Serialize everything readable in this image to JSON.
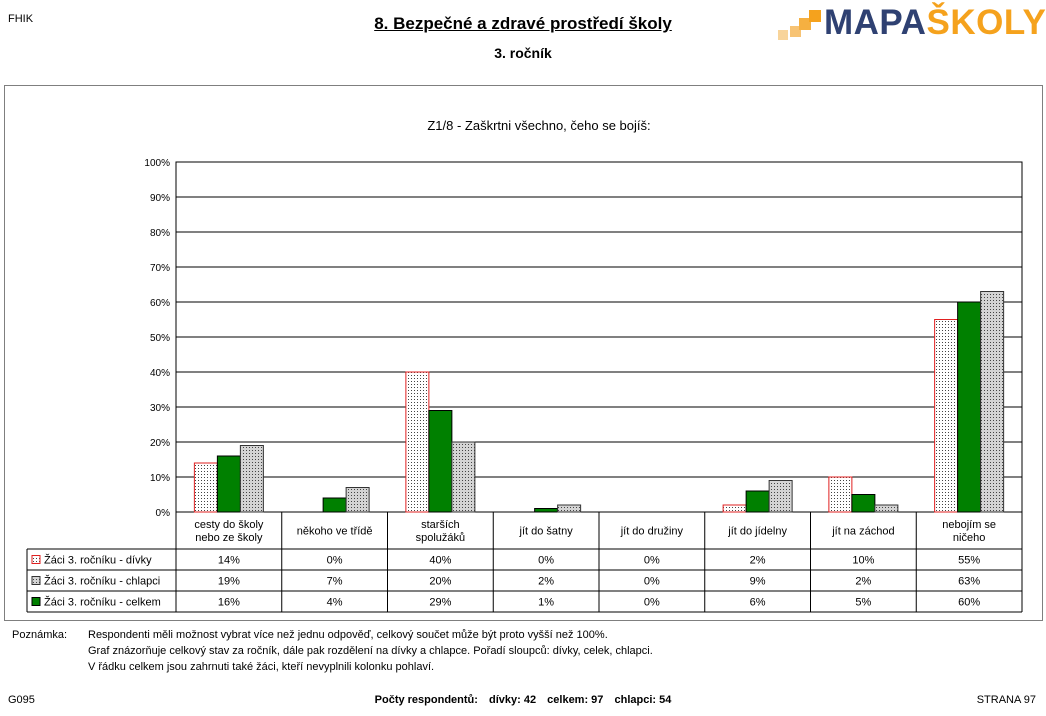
{
  "header": {
    "corner_label": "FHIK",
    "title": "8. Bezpečné a zdravé prostředí školy",
    "subtitle": "3. ročník",
    "logo": {
      "part1": "MAPA",
      "part2": "ŠKOLY",
      "color_dark": "#2f4172",
      "color_accent": "#f5a21d"
    }
  },
  "chart_data": {
    "type": "bar",
    "title": "Z1/8 - Zaškrtni všechno, čeho se bojíš:",
    "categories": [
      [
        "cesty do školy",
        "nebo ze školy"
      ],
      [
        "někoho ve třídě"
      ],
      [
        "starších",
        "spolužáků"
      ],
      [
        "jít do šatny"
      ],
      [
        "jít do družiny"
      ],
      [
        "jít do jídelny"
      ],
      [
        "jít na záchod"
      ],
      [
        "nebojím se",
        "ničeho"
      ]
    ],
    "series": [
      {
        "name": "Žáci 3. ročníku - dívky",
        "values": [
          14,
          0,
          40,
          0,
          0,
          2,
          10,
          55
        ],
        "fill": "#ffffff",
        "stroke": "#e02020",
        "pattern": "dots"
      },
      {
        "name": "Žáci 3. ročníku - chlapci",
        "values": [
          19,
          7,
          20,
          2,
          0,
          9,
          2,
          63
        ],
        "fill": "#d4d4d4",
        "stroke": "#333333",
        "pattern": "dots"
      },
      {
        "name": "Žáci 3. ročníku - celkem",
        "values": [
          16,
          4,
          29,
          1,
          0,
          6,
          5,
          60
        ],
        "fill": "#008000",
        "stroke": "#000000",
        "pattern": "solid"
      }
    ],
    "bar_order": [
      0,
      2,
      1
    ],
    "table_rows": [
      {
        "series_index": 0,
        "cells": [
          "14%",
          "0%",
          "40%",
          "0%",
          "0%",
          "2%",
          "10%",
          "55%"
        ]
      },
      {
        "series_index": 1,
        "cells": [
          "19%",
          "7%",
          "20%",
          "2%",
          "0%",
          "9%",
          "2%",
          "63%"
        ]
      },
      {
        "series_index": 2,
        "cells": [
          "16%",
          "4%",
          "29%",
          "1%",
          "0%",
          "6%",
          "5%",
          "60%"
        ]
      }
    ],
    "y_ticks": [
      "0%",
      "10%",
      "20%",
      "30%",
      "40%",
      "50%",
      "60%",
      "70%",
      "80%",
      "90%",
      "100%"
    ],
    "ylim": [
      0,
      100
    ],
    "grid": true,
    "legend": "table-left"
  },
  "notes": {
    "label": "Poznámka:",
    "lines": [
      "Respondenti měli možnost vybrat více než jednu odpověď, celkový součet může být proto vyšší než 100%.",
      "Graf znázorňuje celkový stav za ročník, dále pak rozdělení na dívky a chlapce. Pořadí sloupců: dívky, celek, chlapci.",
      "V řádku celkem jsou zahrnuti také žáci, kteří nevyplnili kolonku pohlaví."
    ]
  },
  "footer": {
    "left": "G095",
    "center_label": "Počty respondentů:",
    "girls": "dívky: 42",
    "total": "celkem: 97",
    "boys": "chlapci: 54",
    "right": "STRANA 97"
  }
}
